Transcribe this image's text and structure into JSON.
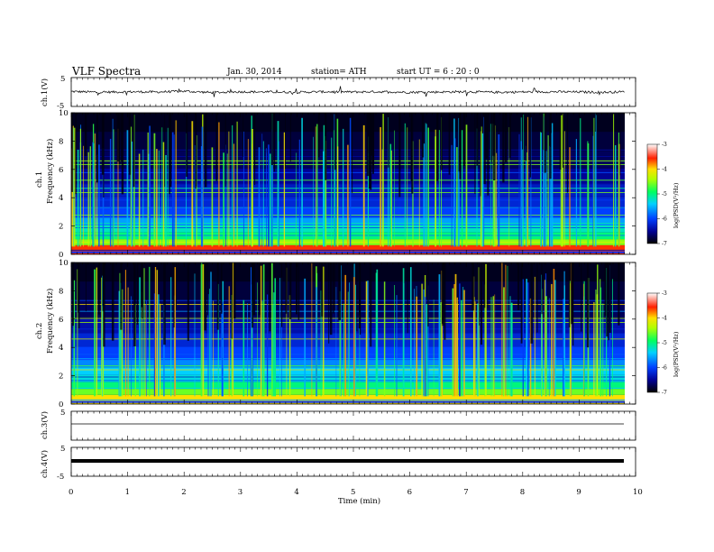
{
  "header": {
    "title": "VLF  Spectra",
    "date": "Jan. 30, 2014",
    "station": "station= ATH",
    "start": "start  UT  =   6  : 20 : 0"
  },
  "chart_data": [
    {
      "type": "line",
      "panel": "ch1",
      "ylabel": "ch.1(V)",
      "ylim": [
        -5,
        5
      ],
      "yticks": [
        "5",
        "-5"
      ],
      "x": [
        0,
        0.5,
        1,
        1.5,
        2,
        2.5,
        3,
        3.5,
        4,
        4.5,
        5,
        5.5,
        6,
        6.5,
        7,
        7.5,
        8,
        8.5,
        9,
        9.5,
        9.8
      ],
      "y": [
        0.2,
        -0.1,
        0.1,
        0,
        0.3,
        -0.2,
        0.1,
        0,
        -0.1,
        0.1,
        0,
        0.1,
        -0.1,
        0,
        0.1,
        -0.1,
        0,
        0.1,
        0,
        -0.1,
        0.1
      ]
    },
    {
      "type": "heatmap",
      "panel": "ch1-spectrogram",
      "ylabel": "ch.1\nFrequency (kHz)",
      "ylim": [
        0,
        10
      ],
      "yticks": [
        "10",
        "8",
        "6",
        "4",
        "2",
        "0"
      ],
      "colorbar_label": "log(PSD(V²/Hz)",
      "colorbar_range": [
        -7,
        -3
      ],
      "colorbar_ticks": [
        "-3",
        "-4",
        "-5",
        "-6",
        "-7"
      ],
      "band_levels": [
        {
          "freq": 0.45,
          "level": -3.6
        },
        {
          "freq": 0.85,
          "level": -4.5
        },
        {
          "freq": 1.3,
          "level": -5.0
        },
        {
          "freq": 1.8,
          "level": -5.2
        },
        {
          "freq": 2.3,
          "level": -5.6
        },
        {
          "freq": 2.9,
          "level": -6.0
        },
        {
          "freq": 3.6,
          "level": -6.2
        },
        {
          "freq": 4.5,
          "level": -6.3
        },
        {
          "freq": 5.5,
          "level": -6.5
        },
        {
          "freq": 6.6,
          "level": -6.7
        },
        {
          "freq": 8.0,
          "level": -6.8
        },
        {
          "freq": 9.3,
          "level": -6.9
        }
      ]
    },
    {
      "type": "heatmap",
      "panel": "ch2-spectrogram",
      "ylabel": "ch.2\nFrequency (kHz)",
      "ylim": [
        0,
        10
      ],
      "yticks": [
        "10",
        "8",
        "6",
        "4",
        "2",
        "0"
      ],
      "colorbar_label": "log(PSD(V²/Hz)",
      "colorbar_range": [
        -7,
        -3
      ],
      "colorbar_ticks": [
        "-3",
        "-4",
        "-5",
        "-6",
        "-7"
      ],
      "band_levels": [
        {
          "freq": 0.45,
          "level": -4.0
        },
        {
          "freq": 0.85,
          "level": -4.6
        },
        {
          "freq": 1.3,
          "level": -5.0
        },
        {
          "freq": 1.8,
          "level": -5.3
        },
        {
          "freq": 2.3,
          "level": -5.4
        },
        {
          "freq": 2.9,
          "level": -5.7
        },
        {
          "freq": 3.6,
          "level": -6.0
        },
        {
          "freq": 4.5,
          "level": -6.2
        },
        {
          "freq": 5.5,
          "level": -6.4
        },
        {
          "freq": 6.6,
          "level": -6.7
        },
        {
          "freq": 8.0,
          "level": -6.8
        },
        {
          "freq": 9.3,
          "level": -6.9
        }
      ]
    },
    {
      "type": "line",
      "panel": "ch3",
      "ylabel": "ch.3(V)",
      "ylim": [
        -5,
        5
      ],
      "yticks": [
        "5"
      ],
      "x": [
        0,
        9.8
      ],
      "y": [
        0,
        0
      ]
    },
    {
      "type": "line",
      "panel": "ch4",
      "ylabel": "ch.4(V)",
      "ylim": [
        -5,
        5
      ],
      "yticks": [
        "5",
        "-5"
      ],
      "x": [
        0,
        9.8
      ],
      "y": [
        0,
        0
      ]
    }
  ],
  "xaxis": {
    "label": "Time  (min)",
    "xlim": [
      0,
      10
    ],
    "ticks": [
      "0",
      "1",
      "2",
      "3",
      "4",
      "5",
      "6",
      "7",
      "8",
      "9",
      "10"
    ]
  }
}
